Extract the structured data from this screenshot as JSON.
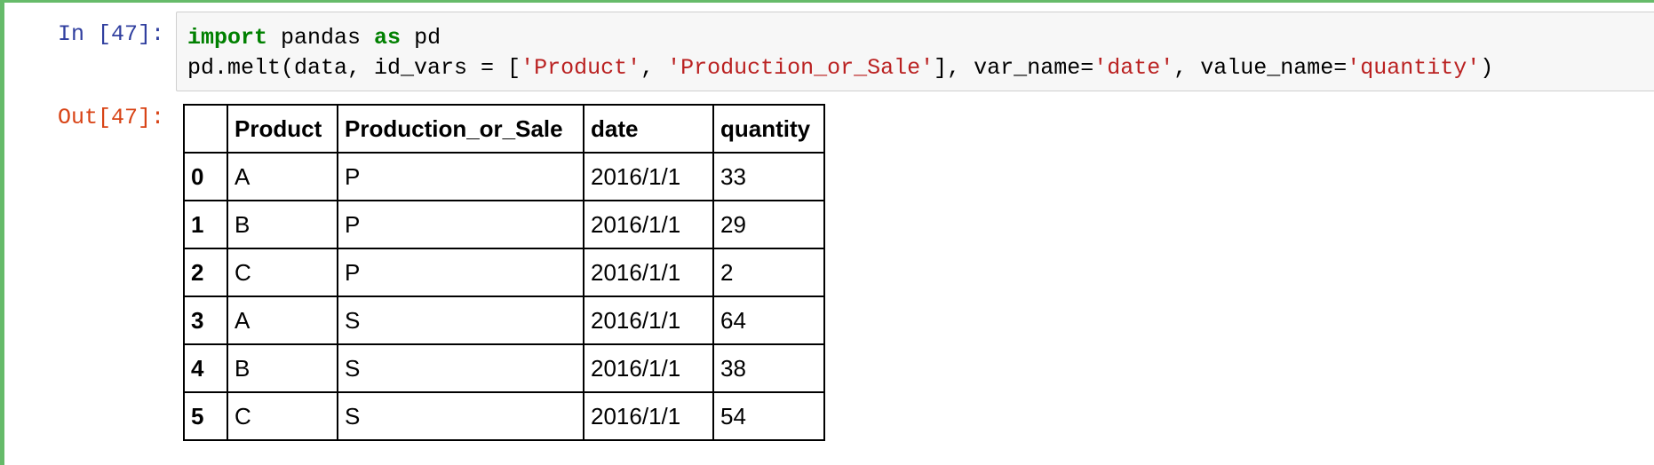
{
  "cell": {
    "in_prompt": "In [47]:",
    "out_prompt": "Out[47]:",
    "code": {
      "line1": [
        {
          "t": "import",
          "c": "kw"
        },
        {
          "t": " pandas ",
          "c": ""
        },
        {
          "t": "as",
          "c": "kw"
        },
        {
          "t": " pd",
          "c": ""
        }
      ],
      "line2": [
        {
          "t": "pd.melt(data, id_vars = [",
          "c": ""
        },
        {
          "t": "'Product'",
          "c": "str"
        },
        {
          "t": ", ",
          "c": ""
        },
        {
          "t": "'Production_or_Sale'",
          "c": "str"
        },
        {
          "t": "], var_name=",
          "c": ""
        },
        {
          "t": "'date'",
          "c": "str"
        },
        {
          "t": ", value_name=",
          "c": ""
        },
        {
          "t": "'quantity'",
          "c": "str"
        },
        {
          "t": ")",
          "c": ""
        }
      ]
    }
  },
  "table": {
    "columns": [
      "",
      "Product",
      "Production_or_Sale",
      "date",
      "quantity"
    ],
    "rows": [
      {
        "index": "0",
        "Product": "A",
        "Production_or_Sale": "P",
        "date": "2016/1/1",
        "quantity": "33"
      },
      {
        "index": "1",
        "Product": "B",
        "Production_or_Sale": "P",
        "date": "2016/1/1",
        "quantity": "29"
      },
      {
        "index": "2",
        "Product": "C",
        "Production_or_Sale": "P",
        "date": "2016/1/1",
        "quantity": "2"
      },
      {
        "index": "3",
        "Product": "A",
        "Production_or_Sale": "S",
        "date": "2016/1/1",
        "quantity": "64"
      },
      {
        "index": "4",
        "Product": "B",
        "Production_or_Sale": "S",
        "date": "2016/1/1",
        "quantity": "38"
      },
      {
        "index": "5",
        "Product": "C",
        "Production_or_Sale": "S",
        "date": "2016/1/1",
        "quantity": "54"
      }
    ]
  },
  "colors": {
    "cell_border": "#66bb6a",
    "in_prompt": "#303f9f",
    "out_prompt": "#d84315",
    "keyword": "#008000",
    "string": "#ba2121"
  }
}
